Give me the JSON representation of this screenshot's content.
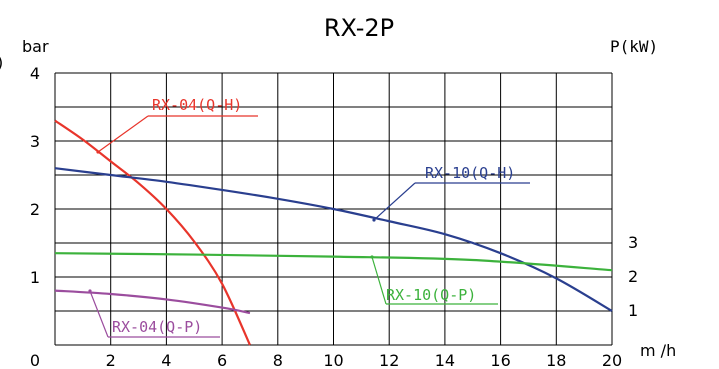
{
  "chart_data": {
    "type": "line",
    "title": "RX-2P",
    "left_clip": ")",
    "ylabel_left": "bar",
    "ylabel_right": "P(kW)",
    "xlabel": "m /h",
    "xlim": [
      0,
      20
    ],
    "ylim": [
      0,
      4
    ],
    "x_ticks": [
      "0",
      "2",
      "4",
      "6",
      "8",
      "10",
      "12",
      "14",
      "16",
      "18",
      "20"
    ],
    "y_ticks": [
      "1",
      "2",
      "3",
      "4"
    ],
    "y2_ticks": [
      "1",
      "2",
      "3"
    ],
    "grid": true,
    "colors": {
      "red": "#e8352b",
      "blue": "#2a3f8f",
      "green": "#3cb23c",
      "purple": "#9b4d9e",
      "grid": "#000000"
    },
    "series": [
      {
        "name": "RX-04(Q-H)",
        "color": "#e8352b",
        "x": [
          0,
          1,
          2,
          3,
          4,
          5,
          6,
          7
        ],
        "y": [
          3.3,
          3.02,
          2.7,
          2.38,
          2.0,
          1.52,
          0.9,
          0.0
        ]
      },
      {
        "name": "RX-10(Q-H)",
        "color": "#2a3f8f",
        "x": [
          0,
          2,
          4,
          6,
          8,
          10,
          12,
          14,
          16,
          18,
          20
        ],
        "y": [
          2.6,
          2.5,
          2.4,
          2.28,
          2.15,
          2.0,
          1.82,
          1.63,
          1.35,
          0.98,
          0.5
        ]
      },
      {
        "name": "RX-10(Q-P)",
        "color": "#3cb23c",
        "x": [
          0,
          5,
          10,
          15,
          20
        ],
        "y": [
          1.35,
          1.33,
          1.3,
          1.25,
          1.1
        ]
      },
      {
        "name": "RX-04(Q-P)",
        "color": "#9b4d9e",
        "x": [
          0,
          2,
          4,
          6,
          7
        ],
        "y": [
          0.8,
          0.75,
          0.67,
          0.55,
          0.47
        ]
      }
    ]
  }
}
